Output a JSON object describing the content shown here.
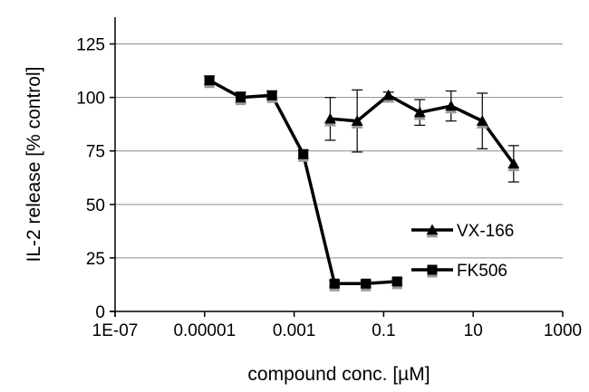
{
  "chart_data": {
    "type": "line",
    "title": "",
    "xlabel": "compound conc. [µM]",
    "ylabel": "IL-2 release [% control]",
    "x_scale": "log",
    "xlim": [
      1e-07,
      1000
    ],
    "ylim": [
      0,
      137.5
    ],
    "x_ticks": [
      {
        "value": 1e-07,
        "label": "1E-07"
      },
      {
        "value": 1e-05,
        "label": "0.00001"
      },
      {
        "value": 0.001,
        "label": "0.001"
      },
      {
        "value": 0.1,
        "label": "0.1"
      },
      {
        "value": 10,
        "label": "10"
      },
      {
        "value": 1000,
        "label": "1000"
      }
    ],
    "y_ticks": [
      0,
      25,
      50,
      75,
      100,
      125
    ],
    "grid": {
      "horizontal": true,
      "vertical": false
    },
    "legend_position": "bottom-right",
    "colors": {
      "line": "#000000",
      "error_bar": "#111111",
      "marker_shadow": "#999999"
    },
    "series": [
      {
        "name": "VX-166",
        "marker": "triangle",
        "x": [
          0.0064,
          0.0256,
          0.128,
          0.64,
          3.2,
          16,
          80
        ],
        "y": [
          90,
          89,
          101,
          93,
          96,
          89,
          69
        ],
        "error": [
          10,
          14.5,
          1.5,
          6,
          7,
          13,
          8.5
        ]
      },
      {
        "name": "FK506",
        "marker": "square",
        "x": [
          1.28e-05,
          6.4e-05,
          0.00032,
          0.0016,
          0.008,
          0.04,
          0.2
        ],
        "y": [
          108,
          100,
          101,
          73.5,
          13,
          13,
          14
        ],
        "error": [
          2,
          2.5,
          2,
          2,
          1.5,
          1.5,
          1.5
        ]
      }
    ]
  }
}
